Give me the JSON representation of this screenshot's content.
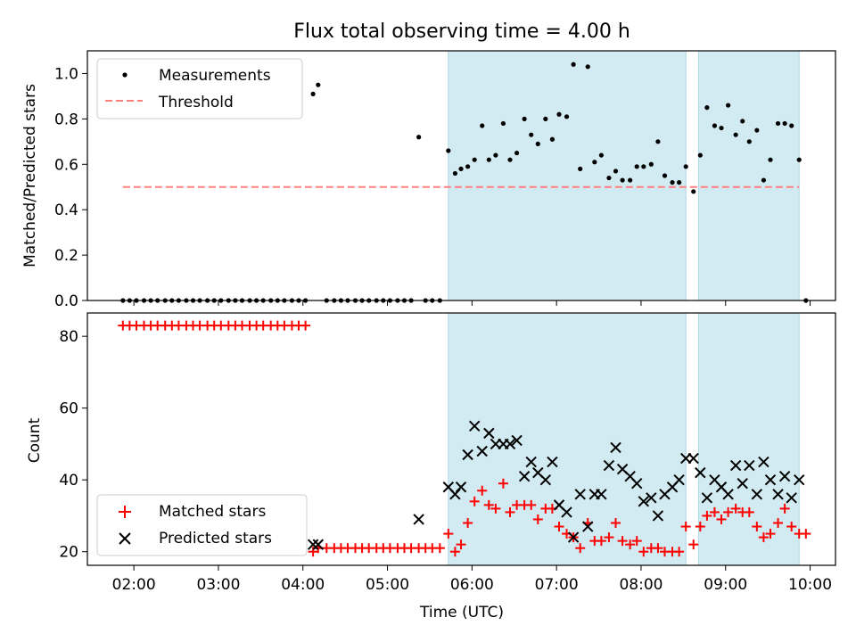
{
  "title": "Flux total observing time = 4.00 h",
  "colors": {
    "measurement": "#000000",
    "threshold": "#ff7f7f",
    "matched": "#ff0000",
    "predicted": "#000000",
    "shade": "#add8e6"
  },
  "chart_data": [
    {
      "type": "scatter",
      "ylabel": "Matched/Predicted stars",
      "xlim": [
        1.45,
        10.3
      ],
      "ylim": [
        0,
        1.1
      ],
      "yticks": [
        "0.0",
        "0.2",
        "0.4",
        "0.6",
        "0.8",
        "1.0"
      ],
      "ytick_values": [
        0,
        0.2,
        0.4,
        0.6,
        0.8,
        1.0
      ],
      "shaded_intervals": [
        [
          5.72,
          8.53
        ],
        [
          8.68,
          9.87
        ]
      ],
      "legend": {
        "position": "upper left",
        "entries": [
          "Measurements",
          "Threshold"
        ]
      },
      "threshold": {
        "name": "Threshold",
        "value": 0.5,
        "x_range": [
          1.87,
          9.87
        ]
      },
      "series": [
        {
          "name": "Measurements",
          "x": [
            1.87,
            1.95,
            2.03,
            2.12,
            2.2,
            2.28,
            2.37,
            2.45,
            2.53,
            2.62,
            2.7,
            2.78,
            2.87,
            2.95,
            3.03,
            3.12,
            3.2,
            3.28,
            3.37,
            3.45,
            3.53,
            3.62,
            3.7,
            3.78,
            3.87,
            3.95,
            4.03,
            4.12,
            4.18,
            4.28,
            4.37,
            4.45,
            4.53,
            4.62,
            4.7,
            4.78,
            4.87,
            4.95,
            5.03,
            5.12,
            5.2,
            5.28,
            5.37,
            5.45,
            5.53,
            5.62,
            5.72,
            5.8,
            5.87,
            5.95,
            6.03,
            6.12,
            6.2,
            6.28,
            6.37,
            6.45,
            6.53,
            6.62,
            6.7,
            6.78,
            6.87,
            6.95,
            7.03,
            7.12,
            7.2,
            7.28,
            7.37,
            7.45,
            7.53,
            7.62,
            7.7,
            7.78,
            7.87,
            7.95,
            8.03,
            8.12,
            8.2,
            8.28,
            8.37,
            8.45,
            8.53,
            8.62,
            8.7,
            8.78,
            8.87,
            8.95,
            9.03,
            9.12,
            9.2,
            9.28,
            9.37,
            9.45,
            9.53,
            9.62,
            9.7,
            9.78,
            9.87,
            9.95
          ],
          "y": [
            0,
            0,
            0,
            0,
            0,
            0,
            0,
            0,
            0,
            0,
            0,
            0,
            0,
            0,
            0,
            0,
            0,
            0,
            0,
            0,
            0,
            0,
            0,
            0,
            0,
            0,
            0,
            0.91,
            0.95,
            0,
            0,
            0,
            0,
            0,
            0,
            0,
            0,
            0,
            0,
            0,
            0,
            0,
            0.72,
            0,
            0,
            0,
            0.66,
            0.56,
            0.58,
            0.59,
            0.62,
            0.77,
            0.62,
            0.64,
            0.78,
            0.62,
            0.65,
            0.8,
            0.73,
            0.69,
            0.8,
            0.71,
            0.82,
            0.81,
            1.04,
            0.58,
            1.03,
            0.61,
            0.64,
            0.54,
            0.57,
            0.53,
            0.53,
            0.59,
            0.59,
            0.6,
            0.7,
            0.55,
            0.52,
            0.52,
            0.59,
            0.48,
            0.64,
            0.85,
            0.77,
            0.76,
            0.86,
            0.73,
            0.79,
            0.7,
            0.75,
            0.53,
            0.62,
            0.78,
            0.78,
            0.77,
            0.62,
            0.0
          ]
        }
      ]
    },
    {
      "type": "scatter",
      "xlabel": "Time (UTC)",
      "ylabel": "Count",
      "xlim": [
        1.45,
        10.3
      ],
      "ylim": [
        16.2,
        86.5
      ],
      "xticks": [
        "02:00",
        "03:00",
        "04:00",
        "05:00",
        "06:00",
        "07:00",
        "08:00",
        "09:00",
        "10:00"
      ],
      "xtick_values": [
        2,
        3,
        4,
        5,
        6,
        7,
        8,
        9,
        10
      ],
      "yticks": [
        "20",
        "40",
        "60",
        "80"
      ],
      "ytick_values": [
        20,
        40,
        60,
        80
      ],
      "shaded_intervals": [
        [
          5.72,
          8.53
        ],
        [
          8.68,
          9.87
        ]
      ],
      "legend": {
        "position": "lower left",
        "entries": [
          "Matched stars",
          "Predicted stars"
        ]
      },
      "series": [
        {
          "name": "Matched stars",
          "marker": "plus",
          "x": [
            1.87,
            1.95,
            2.03,
            2.12,
            2.2,
            2.28,
            2.37,
            2.45,
            2.53,
            2.62,
            2.7,
            2.78,
            2.87,
            2.95,
            3.03,
            3.12,
            3.2,
            3.28,
            3.37,
            3.45,
            3.53,
            3.62,
            3.7,
            3.78,
            3.87,
            3.95,
            4.03,
            4.12,
            4.18,
            4.28,
            4.37,
            4.45,
            4.53,
            4.62,
            4.7,
            4.78,
            4.87,
            4.95,
            5.03,
            5.12,
            5.2,
            5.28,
            5.37,
            5.45,
            5.53,
            5.62,
            5.72,
            5.8,
            5.87,
            5.95,
            6.03,
            6.12,
            6.2,
            6.28,
            6.37,
            6.45,
            6.53,
            6.62,
            6.7,
            6.78,
            6.87,
            6.95,
            7.03,
            7.12,
            7.2,
            7.28,
            7.37,
            7.45,
            7.53,
            7.62,
            7.7,
            7.78,
            7.87,
            7.95,
            8.03,
            8.12,
            8.2,
            8.28,
            8.37,
            8.45,
            8.53,
            8.62,
            8.7,
            8.78,
            8.87,
            8.95,
            9.03,
            9.12,
            9.2,
            9.28,
            9.37,
            9.45,
            9.53,
            9.62,
            9.7,
            9.78,
            9.87,
            9.95
          ],
          "y": [
            83,
            83,
            83,
            83,
            83,
            83,
            83,
            83,
            83,
            83,
            83,
            83,
            83,
            83,
            83,
            83,
            83,
            83,
            83,
            83,
            83,
            83,
            83,
            83,
            83,
            83,
            83,
            20,
            21,
            21,
            21,
            21,
            21,
            21,
            21,
            21,
            21,
            21,
            21,
            21,
            21,
            21,
            21,
            21,
            21,
            21,
            25,
            20,
            22,
            28,
            34,
            37,
            33,
            32,
            39,
            31,
            33,
            33,
            33,
            29,
            32,
            32,
            27,
            25,
            24,
            21,
            28,
            23,
            23,
            24,
            28,
            23,
            22,
            23,
            20,
            21,
            21,
            20,
            20,
            20,
            27,
            22,
            27,
            30,
            31,
            29,
            31,
            32,
            31,
            31,
            27,
            24,
            25,
            28,
            32,
            27,
            25,
            25
          ]
        },
        {
          "name": "Predicted stars",
          "marker": "x",
          "x": [
            4.12,
            4.18,
            5.37,
            5.72,
            5.8,
            5.87,
            5.95,
            6.03,
            6.12,
            6.2,
            6.28,
            6.37,
            6.45,
            6.53,
            6.62,
            6.7,
            6.78,
            6.87,
            6.95,
            7.03,
            7.12,
            7.2,
            7.28,
            7.37,
            7.45,
            7.53,
            7.62,
            7.7,
            7.78,
            7.87,
            7.95,
            8.03,
            8.12,
            8.2,
            8.28,
            8.37,
            8.45,
            8.53,
            8.62,
            8.7,
            8.78,
            8.87,
            8.95,
            9.03,
            9.12,
            9.2,
            9.28,
            9.37,
            9.45,
            9.53,
            9.62,
            9.7,
            9.78,
            9.87
          ],
          "y": [
            22,
            22,
            29,
            38,
            36,
            38,
            47,
            55,
            48,
            53,
            50,
            50,
            50,
            51,
            41,
            45,
            42,
            40,
            45,
            33,
            31,
            24,
            36,
            27,
            36,
            36,
            44,
            49,
            43,
            41,
            39,
            34,
            35,
            30,
            36,
            38,
            40,
            46,
            46,
            42,
            35,
            40,
            38,
            36,
            44,
            39,
            44,
            36,
            45,
            40,
            36,
            41,
            35,
            40
          ]
        }
      ]
    }
  ]
}
